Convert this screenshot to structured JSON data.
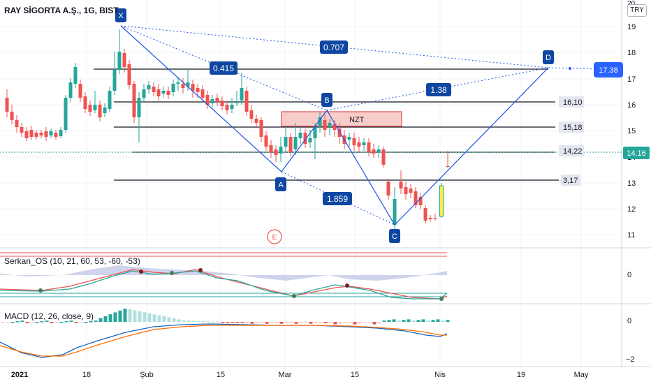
{
  "header": {
    "symbol_title": "RAY SİGORTA A.Ş., 1G, BIST",
    "currency": "TRY",
    "top_price_label": "20"
  },
  "price_axis": [
    "19",
    "18",
    "17",
    "16",
    "15",
    "14",
    "13",
    "12",
    "11"
  ],
  "current_price": "14.16",
  "target_price": "17.38",
  "pattern_points": {
    "x": "X",
    "a": "A",
    "b": "B",
    "c": "C",
    "d": "D"
  },
  "ratios": {
    "xb": "0.415",
    "xd": "0.707",
    "bd": "1.38",
    "ac": "1.859"
  },
  "zone_label": "NZT",
  "level_labels": [
    "16,10",
    "15,18",
    "14,22",
    "3,17"
  ],
  "event_marker": "E",
  "indicator1": {
    "name": "Serkan_OS (10, 21, 60, 53, -60, -53)",
    "axis_zero": "0"
  },
  "indicator2": {
    "name": "MACD (12, 26, close, 9)",
    "axis_zero": "0",
    "axis_neg": "−2"
  },
  "time_axis": [
    "2021",
    "18",
    "Şub",
    "15",
    "Mar",
    "15",
    "Nis",
    "19",
    "May"
  ],
  "colors": {
    "up": "#26a69a",
    "down": "#ef5350",
    "highlight": "#ffeb3b",
    "pattern": "#2962ff",
    "label_bg": "#0d47a1",
    "price_tag": "#2962ff",
    "zone_fill": "#f5b7b1",
    "zone_border": "#d32f2f"
  }
}
